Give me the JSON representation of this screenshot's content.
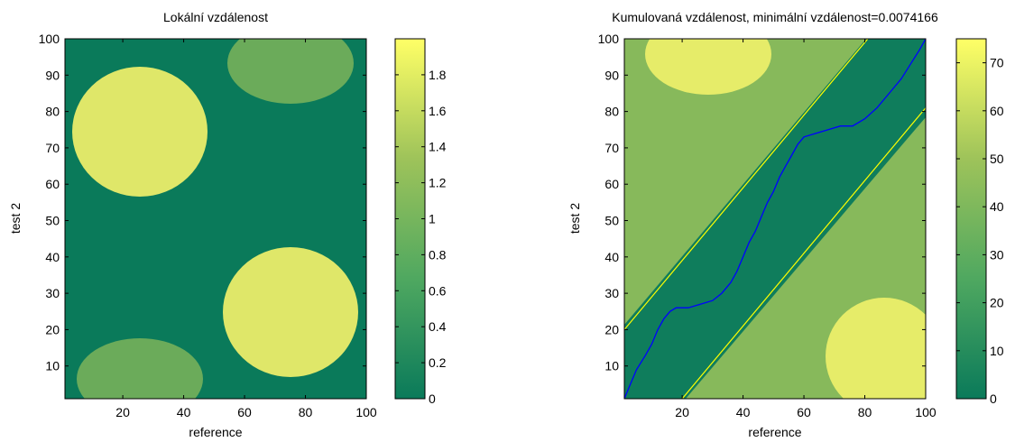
{
  "chart_data": [
    {
      "type": "heatmap",
      "title": "Lokální vzdálenost",
      "xlabel": "reference",
      "ylabel": "test 2",
      "xlim": [
        1,
        100
      ],
      "ylim": [
        1,
        100
      ],
      "xticks": [
        20,
        40,
        60,
        80,
        100
      ],
      "yticks": [
        10,
        20,
        30,
        40,
        50,
        60,
        70,
        80,
        90,
        100
      ],
      "colorbar": {
        "range": [
          0,
          2
        ],
        "ticks": [
          0,
          0.2,
          0.4,
          0.6,
          0.8,
          1,
          1.2,
          1.4,
          1.6,
          1.8
        ],
        "tick_labels": [
          "0",
          "0.2",
          "0.4",
          "0.6",
          "0.8",
          "1",
          "1.2",
          "1.4",
          "1.6",
          "1.8"
        ]
      },
      "colormap": [
        "#0a7a5a",
        "#4fa860",
        "#9ec35a",
        "#ffff66"
      ]
    },
    {
      "type": "heatmap",
      "title": "Kumulovaná vzdálenost, minimální vzdálenost=0.0074166",
      "xlabel": "reference",
      "ylabel": "test 2",
      "xlim": [
        1,
        100
      ],
      "ylim": [
        1,
        100
      ],
      "xticks": [
        20,
        40,
        60,
        80,
        100
      ],
      "yticks": [
        10,
        20,
        30,
        40,
        50,
        60,
        70,
        80,
        90,
        100
      ],
      "colorbar": {
        "range": [
          0,
          75
        ],
        "ticks": [
          0,
          10,
          20,
          30,
          40,
          50,
          60,
          70
        ],
        "tick_labels": [
          "0",
          "10",
          "20",
          "30",
          "40",
          "50",
          "60",
          "70"
        ]
      },
      "band_lines": [
        {
          "from": [
            1,
            20
          ],
          "to": [
            81,
            100
          ],
          "color": "#ffff00"
        },
        {
          "from": [
            20,
            1
          ],
          "to": [
            100,
            81
          ],
          "color": "#ffff00"
        }
      ],
      "path": {
        "color": "#0000ff",
        "points": [
          [
            1,
            1
          ],
          [
            3,
            5
          ],
          [
            5,
            9
          ],
          [
            8,
            13
          ],
          [
            10,
            16
          ],
          [
            12,
            20
          ],
          [
            14,
            23
          ],
          [
            16,
            25
          ],
          [
            18,
            26
          ],
          [
            22,
            26
          ],
          [
            26,
            27
          ],
          [
            30,
            28
          ],
          [
            33,
            30
          ],
          [
            36,
            33
          ],
          [
            38,
            36
          ],
          [
            40,
            40
          ],
          [
            42,
            44
          ],
          [
            44,
            47
          ],
          [
            46,
            51
          ],
          [
            48,
            55
          ],
          [
            50,
            58
          ],
          [
            52,
            62
          ],
          [
            54,
            65
          ],
          [
            56,
            68
          ],
          [
            58,
            71
          ],
          [
            60,
            73
          ],
          [
            64,
            74
          ],
          [
            68,
            75
          ],
          [
            72,
            76
          ],
          [
            76,
            76
          ],
          [
            80,
            78
          ],
          [
            84,
            81
          ],
          [
            88,
            85
          ],
          [
            92,
            89
          ],
          [
            95,
            93
          ],
          [
            98,
            97
          ],
          [
            100,
            100
          ]
        ]
      }
    }
  ]
}
